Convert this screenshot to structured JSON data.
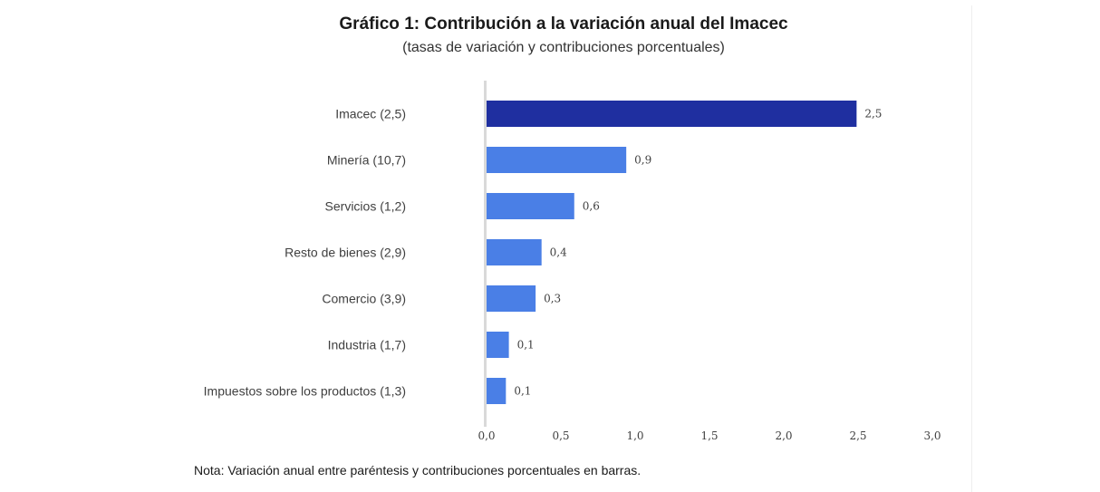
{
  "chart_data": {
    "type": "bar",
    "orientation": "horizontal",
    "title": "Gráfico 1: Contribución a la variación anual del Imacec",
    "subtitle": "(tasas de variación y contribuciones porcentuales)",
    "categories": [
      "Imacec (2,5)",
      "Minería (10,7)",
      "Servicios (1,2)",
      "Resto de bienes (2,9)",
      "Comercio (3,9)",
      "Industria (1,7)",
      "Impuestos sobre los productos (1,3)"
    ],
    "values": [
      2.49,
      0.94,
      0.59,
      0.37,
      0.33,
      0.15,
      0.13
    ],
    "value_labels": [
      "2,5",
      "0,9",
      "0,6",
      "0,4",
      "0,3",
      "0,1",
      "0,1"
    ],
    "colors": [
      "#1f2fa0",
      "#4a7fe6",
      "#4a7fe6",
      "#4a7fe6",
      "#4a7fe6",
      "#4a7fe6",
      "#4a7fe6"
    ],
    "xlim": [
      0,
      3.0
    ],
    "xticks": [
      0,
      0.5,
      1.0,
      1.5,
      2.0,
      2.5,
      3.0
    ],
    "xtick_labels": [
      "0,0",
      "0,5",
      "1,0",
      "1,5",
      "2,0",
      "2,5",
      "3,0"
    ],
    "grid": false,
    "legend": "none",
    "note": "Nota: Variación anual entre paréntesis y contribuciones porcentuales en barras."
  }
}
